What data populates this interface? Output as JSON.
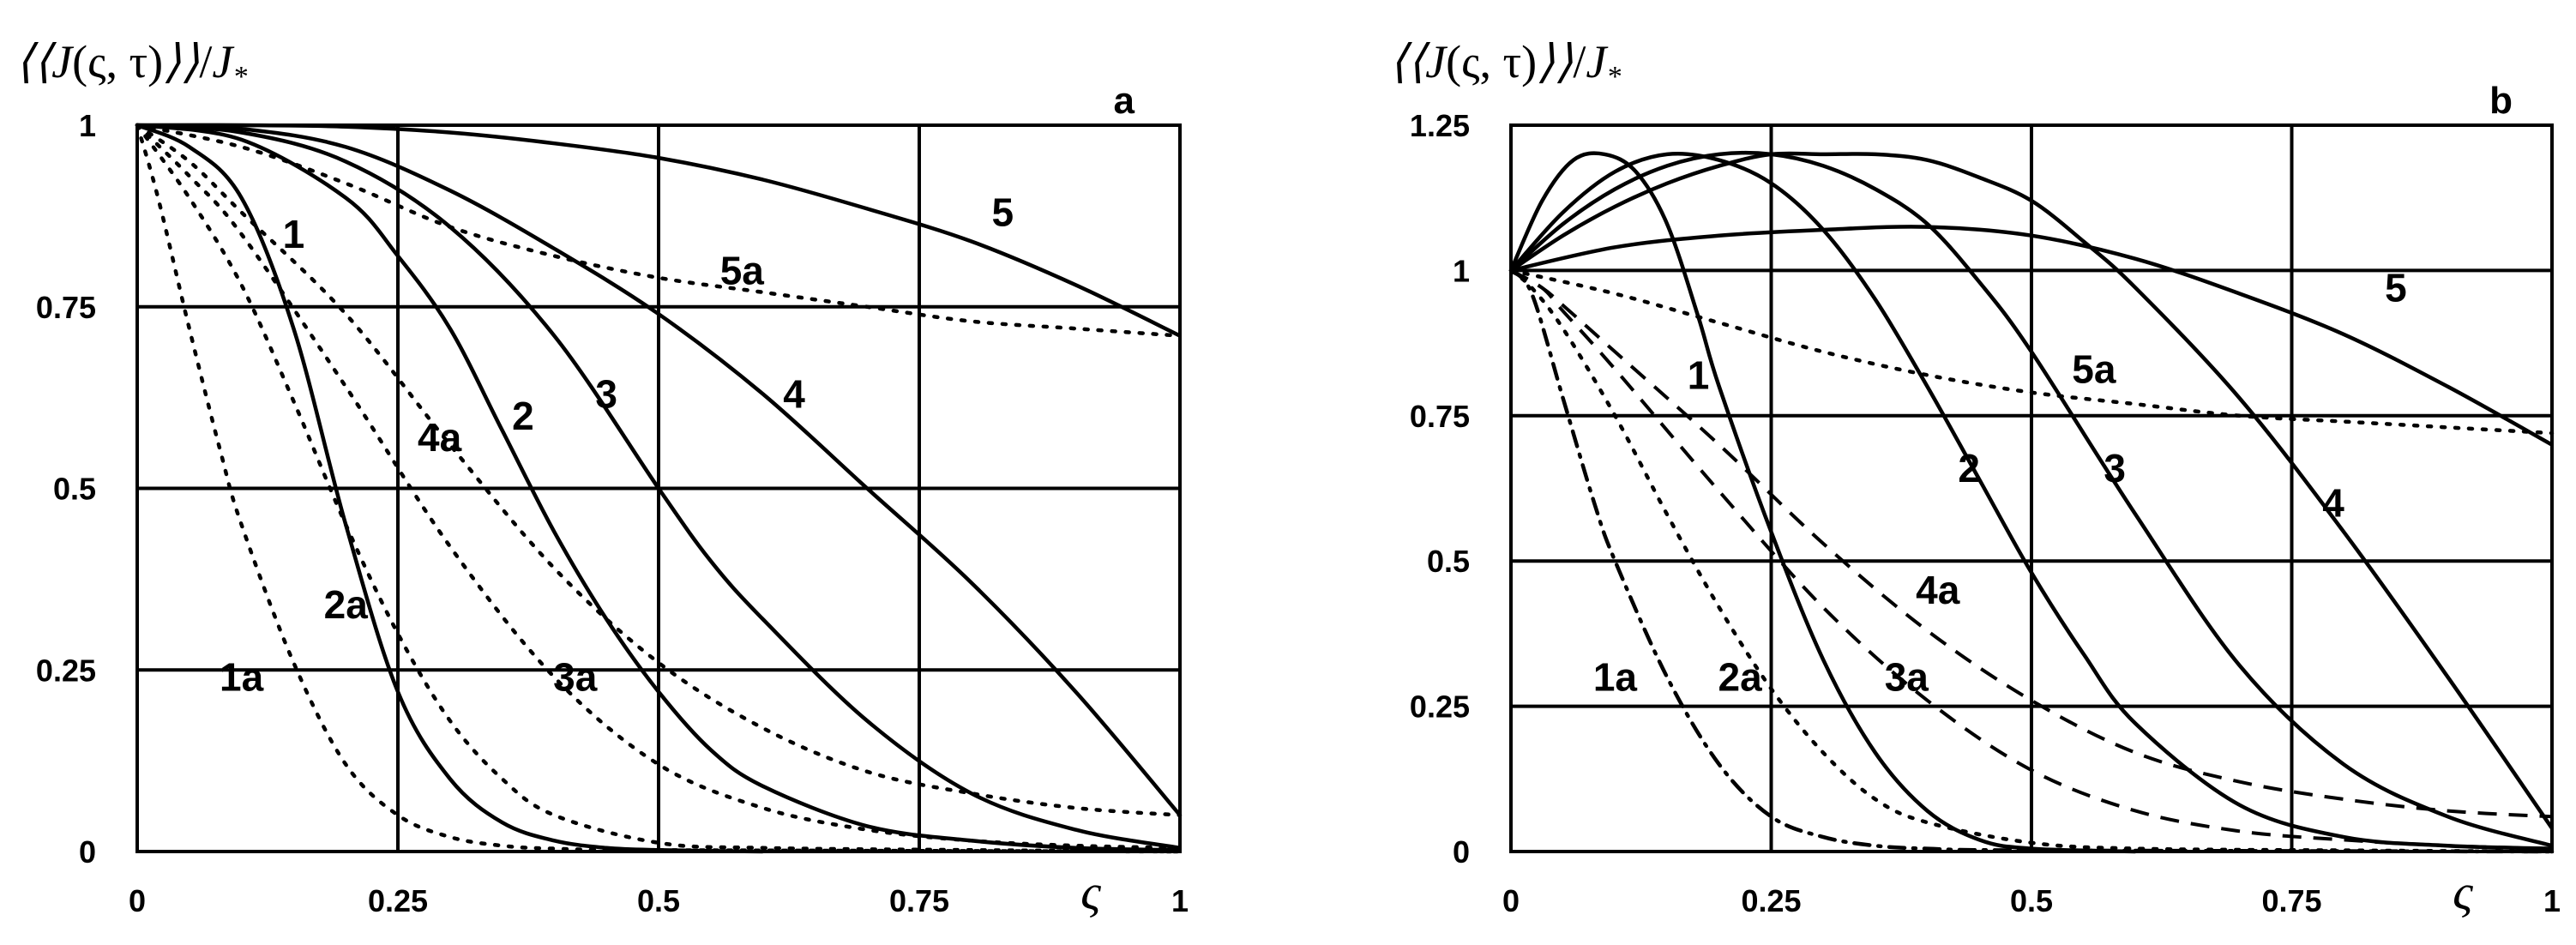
{
  "chart_data": [
    {
      "type": "line",
      "panel": "a",
      "ylabel": "⟨⟨J(ς, τ)⟩⟩/J*",
      "xlabel": "ς",
      "xlim": [
        0,
        1
      ],
      "ylim": [
        0,
        1
      ],
      "xticks": [
        0,
        0.25,
        0.5,
        0.75,
        1
      ],
      "xtick_labels": [
        "0",
        "0.25",
        "0.5",
        "0.75",
        "1"
      ],
      "yticks": [
        0,
        0.25,
        0.5,
        0.75,
        1
      ],
      "ytick_labels": [
        "0",
        "0.25",
        "0.5",
        "0.75",
        "1"
      ],
      "grid": true,
      "series": [
        {
          "name": "1",
          "style": "solid",
          "label_at": [
            0.15,
            0.85
          ],
          "x": [
            0,
            0.05,
            0.1,
            0.15,
            0.2,
            0.25,
            0.3,
            0.35,
            0.4,
            0.45,
            0.5,
            0.6
          ],
          "y": [
            1,
            0.97,
            0.9,
            0.72,
            0.45,
            0.22,
            0.1,
            0.04,
            0.015,
            0.005,
            0.002,
            0
          ]
        },
        {
          "name": "2",
          "style": "solid",
          "label_at": [
            0.37,
            0.6
          ],
          "x": [
            0,
            0.1,
            0.2,
            0.25,
            0.3,
            0.35,
            0.4,
            0.45,
            0.5,
            0.55,
            0.6,
            0.7,
            0.8,
            0.9,
            1
          ],
          "y": [
            1,
            0.98,
            0.9,
            0.82,
            0.72,
            0.58,
            0.44,
            0.32,
            0.22,
            0.14,
            0.09,
            0.035,
            0.015,
            0.005,
            0.002
          ]
        },
        {
          "name": "3",
          "style": "solid",
          "label_at": [
            0.45,
            0.63
          ],
          "x": [
            0,
            0.1,
            0.2,
            0.3,
            0.4,
            0.5,
            0.55,
            0.6,
            0.7,
            0.8,
            0.9,
            1
          ],
          "y": [
            1,
            0.99,
            0.95,
            0.86,
            0.71,
            0.5,
            0.4,
            0.32,
            0.18,
            0.08,
            0.03,
            0.005
          ]
        },
        {
          "name": "4",
          "style": "solid",
          "label_at": [
            0.63,
            0.63
          ],
          "x": [
            0,
            0.1,
            0.2,
            0.3,
            0.4,
            0.5,
            0.6,
            0.7,
            0.8,
            0.9,
            1
          ],
          "y": [
            1,
            0.995,
            0.97,
            0.91,
            0.83,
            0.74,
            0.63,
            0.5,
            0.37,
            0.22,
            0.05
          ]
        },
        {
          "name": "5",
          "style": "solid",
          "label_at": [
            0.83,
            0.88
          ],
          "x": [
            0,
            0.1,
            0.2,
            0.3,
            0.4,
            0.5,
            0.6,
            0.7,
            0.8,
            0.9,
            1
          ],
          "y": [
            1,
            1,
            0.998,
            0.99,
            0.975,
            0.955,
            0.925,
            0.885,
            0.84,
            0.78,
            0.71
          ]
        },
        {
          "name": "1a",
          "style": "dotted",
          "label_at": [
            0.1,
            0.24
          ],
          "x": [
            0,
            0.02,
            0.05,
            0.08,
            0.1,
            0.15,
            0.2,
            0.25,
            0.3,
            0.35,
            0.4,
            0.5,
            1
          ],
          "y": [
            1,
            0.9,
            0.72,
            0.55,
            0.45,
            0.26,
            0.12,
            0.05,
            0.02,
            0.008,
            0.004,
            0.002,
            0
          ]
        },
        {
          "name": "2a",
          "style": "dotted",
          "label_at": [
            0.2,
            0.34
          ],
          "x": [
            0,
            0.05,
            0.1,
            0.15,
            0.2,
            0.25,
            0.3,
            0.35,
            0.4,
            0.5,
            0.6,
            0.8,
            1
          ],
          "y": [
            1,
            0.9,
            0.78,
            0.62,
            0.45,
            0.3,
            0.18,
            0.1,
            0.05,
            0.012,
            0.005,
            0.002,
            0
          ]
        },
        {
          "name": "3a",
          "style": "dotted",
          "label_at": [
            0.42,
            0.24
          ],
          "x": [
            0,
            0.05,
            0.1,
            0.2,
            0.3,
            0.4,
            0.5,
            0.6,
            0.7,
            0.8,
            0.9,
            1
          ],
          "y": [
            1,
            0.93,
            0.85,
            0.64,
            0.42,
            0.24,
            0.12,
            0.06,
            0.03,
            0.015,
            0.008,
            0.005
          ]
        },
        {
          "name": "4a",
          "style": "dotted",
          "label_at": [
            0.29,
            0.57
          ],
          "x": [
            0,
            0.05,
            0.1,
            0.2,
            0.3,
            0.4,
            0.5,
            0.6,
            0.7,
            0.8,
            0.9,
            1
          ],
          "y": [
            1,
            0.95,
            0.88,
            0.74,
            0.56,
            0.39,
            0.26,
            0.17,
            0.11,
            0.08,
            0.06,
            0.05
          ]
        },
        {
          "name": "5a",
          "style": "dotted",
          "label_at": [
            0.58,
            0.8
          ],
          "x": [
            0,
            0.1,
            0.2,
            0.3,
            0.4,
            0.5,
            0.6,
            0.7,
            0.8,
            0.9,
            1
          ],
          "y": [
            1,
            0.97,
            0.92,
            0.86,
            0.82,
            0.79,
            0.77,
            0.75,
            0.73,
            0.72,
            0.71
          ]
        }
      ]
    },
    {
      "type": "line",
      "panel": "b",
      "ylabel": "⟨⟨J(ς, τ)⟩⟩/J*",
      "xlabel": "ς",
      "xlim": [
        0,
        1
      ],
      "ylim": [
        0,
        1.25
      ],
      "xticks": [
        0,
        0.25,
        0.5,
        0.75,
        1
      ],
      "xtick_labels": [
        "0",
        "0.25",
        "0.5",
        "0.75",
        "1"
      ],
      "yticks": [
        0,
        0.25,
        0.5,
        0.75,
        1,
        1.25
      ],
      "ytick_labels": [
        "0",
        "0.25",
        "0.5",
        "0.75",
        "1",
        "1.25"
      ],
      "grid": true,
      "series": [
        {
          "name": "1",
          "style": "solid",
          "label_at": [
            0.18,
            0.82
          ],
          "x": [
            0,
            0.03,
            0.06,
            0.09,
            0.12,
            0.15,
            0.18,
            0.2,
            0.25,
            0.3,
            0.35,
            0.4,
            0.45,
            0.5,
            0.6
          ],
          "y": [
            1,
            1.12,
            1.19,
            1.2,
            1.17,
            1.08,
            0.92,
            0.8,
            0.55,
            0.33,
            0.17,
            0.07,
            0.02,
            0.005,
            0
          ]
        },
        {
          "name": "2",
          "style": "solid",
          "label_at": [
            0.44,
            0.66
          ],
          "x": [
            0,
            0.05,
            0.1,
            0.15,
            0.2,
            0.25,
            0.3,
            0.35,
            0.4,
            0.45,
            0.5,
            0.55,
            0.6,
            0.7,
            0.8,
            0.9,
            1
          ],
          "y": [
            1,
            1.1,
            1.17,
            1.2,
            1.19,
            1.15,
            1.07,
            0.95,
            0.8,
            0.64,
            0.48,
            0.34,
            0.22,
            0.08,
            0.025,
            0.01,
            0.005
          ]
        },
        {
          "name": "3",
          "style": "solid",
          "label_at": [
            0.58,
            0.66
          ],
          "x": [
            0,
            0.05,
            0.1,
            0.15,
            0.2,
            0.25,
            0.3,
            0.35,
            0.4,
            0.45,
            0.5,
            0.6,
            0.7,
            0.8,
            0.9,
            1
          ],
          "y": [
            1,
            1.08,
            1.14,
            1.18,
            1.2,
            1.2,
            1.18,
            1.14,
            1.08,
            0.98,
            0.86,
            0.58,
            0.32,
            0.15,
            0.06,
            0.01
          ]
        },
        {
          "name": "4",
          "style": "solid",
          "label_at": [
            0.79,
            0.6
          ],
          "x": [
            0,
            0.05,
            0.1,
            0.15,
            0.2,
            0.25,
            0.3,
            0.35,
            0.4,
            0.45,
            0.5,
            0.55,
            0.6,
            0.7,
            0.8,
            0.9,
            1
          ],
          "y": [
            1,
            1.06,
            1.11,
            1.15,
            1.18,
            1.2,
            1.2,
            1.2,
            1.19,
            1.16,
            1.12,
            1.05,
            0.97,
            0.78,
            0.55,
            0.3,
            0.04
          ]
        },
        {
          "name": "5",
          "style": "solid",
          "label_at": [
            0.85,
            0.97
          ],
          "x": [
            0,
            0.1,
            0.2,
            0.3,
            0.4,
            0.5,
            0.6,
            0.7,
            0.8,
            0.9,
            1
          ],
          "y": [
            1,
            1.04,
            1.06,
            1.07,
            1.075,
            1.06,
            1.02,
            0.96,
            0.89,
            0.8,
            0.7
          ]
        },
        {
          "name": "1a",
          "style": "dashdot",
          "label_at": [
            0.1,
            0.3
          ],
          "x": [
            0,
            0.02,
            0.05,
            0.08,
            0.1,
            0.15,
            0.2,
            0.25,
            0.3,
            0.35,
            0.4,
            0.5,
            1
          ],
          "y": [
            1,
            0.96,
            0.78,
            0.6,
            0.5,
            0.3,
            0.15,
            0.06,
            0.025,
            0.01,
            0.005,
            0.002,
            0
          ]
        },
        {
          "name": "2a",
          "style": "dotted",
          "label_at": [
            0.22,
            0.3
          ],
          "x": [
            0,
            0.02,
            0.05,
            0.1,
            0.15,
            0.2,
            0.25,
            0.3,
            0.35,
            0.4,
            0.5,
            0.6,
            0.8,
            1
          ],
          "y": [
            1,
            0.97,
            0.9,
            0.75,
            0.58,
            0.42,
            0.28,
            0.17,
            0.09,
            0.05,
            0.015,
            0.005,
            0.002,
            0
          ]
        },
        {
          "name": "3a",
          "style": "dashed",
          "label_at": [
            0.38,
            0.3
          ],
          "x": [
            0,
            0.03,
            0.05,
            0.1,
            0.2,
            0.3,
            0.4,
            0.5,
            0.6,
            0.7,
            0.8,
            0.9,
            1
          ],
          "y": [
            1,
            0.97,
            0.93,
            0.83,
            0.62,
            0.42,
            0.26,
            0.14,
            0.07,
            0.035,
            0.02,
            0.01,
            0.005
          ]
        },
        {
          "name": "4a",
          "style": "dashed",
          "label_at": [
            0.41,
            0.45
          ],
          "x": [
            0,
            0.03,
            0.05,
            0.1,
            0.2,
            0.3,
            0.4,
            0.5,
            0.6,
            0.7,
            0.8,
            0.9,
            1
          ],
          "y": [
            1,
            0.97,
            0.94,
            0.86,
            0.7,
            0.53,
            0.38,
            0.26,
            0.17,
            0.12,
            0.09,
            0.07,
            0.06
          ]
        },
        {
          "name": "5a",
          "style": "dotted",
          "label_at": [
            0.56,
            0.83
          ],
          "x": [
            0,
            0.1,
            0.2,
            0.3,
            0.4,
            0.5,
            0.6,
            0.7,
            0.8,
            0.9,
            1
          ],
          "y": [
            1,
            0.96,
            0.91,
            0.86,
            0.82,
            0.79,
            0.77,
            0.75,
            0.74,
            0.73,
            0.72
          ]
        }
      ]
    }
  ],
  "panels": [
    {
      "label": "a",
      "ylabel_parts": {
        "open": "⟨⟨",
        "J": "J",
        "args": "(ς, τ)",
        "close": "⟩⟩",
        "slash": "/",
        "den": "J",
        "sub": "*"
      },
      "xlabel": "ς"
    },
    {
      "label": "b",
      "ylabel_parts": {
        "open": "⟨⟨",
        "J": "J",
        "args": "(ς, τ)",
        "close": "⟩⟩",
        "slash": "/",
        "den": "J",
        "sub": "*"
      },
      "xlabel": "ς"
    }
  ]
}
